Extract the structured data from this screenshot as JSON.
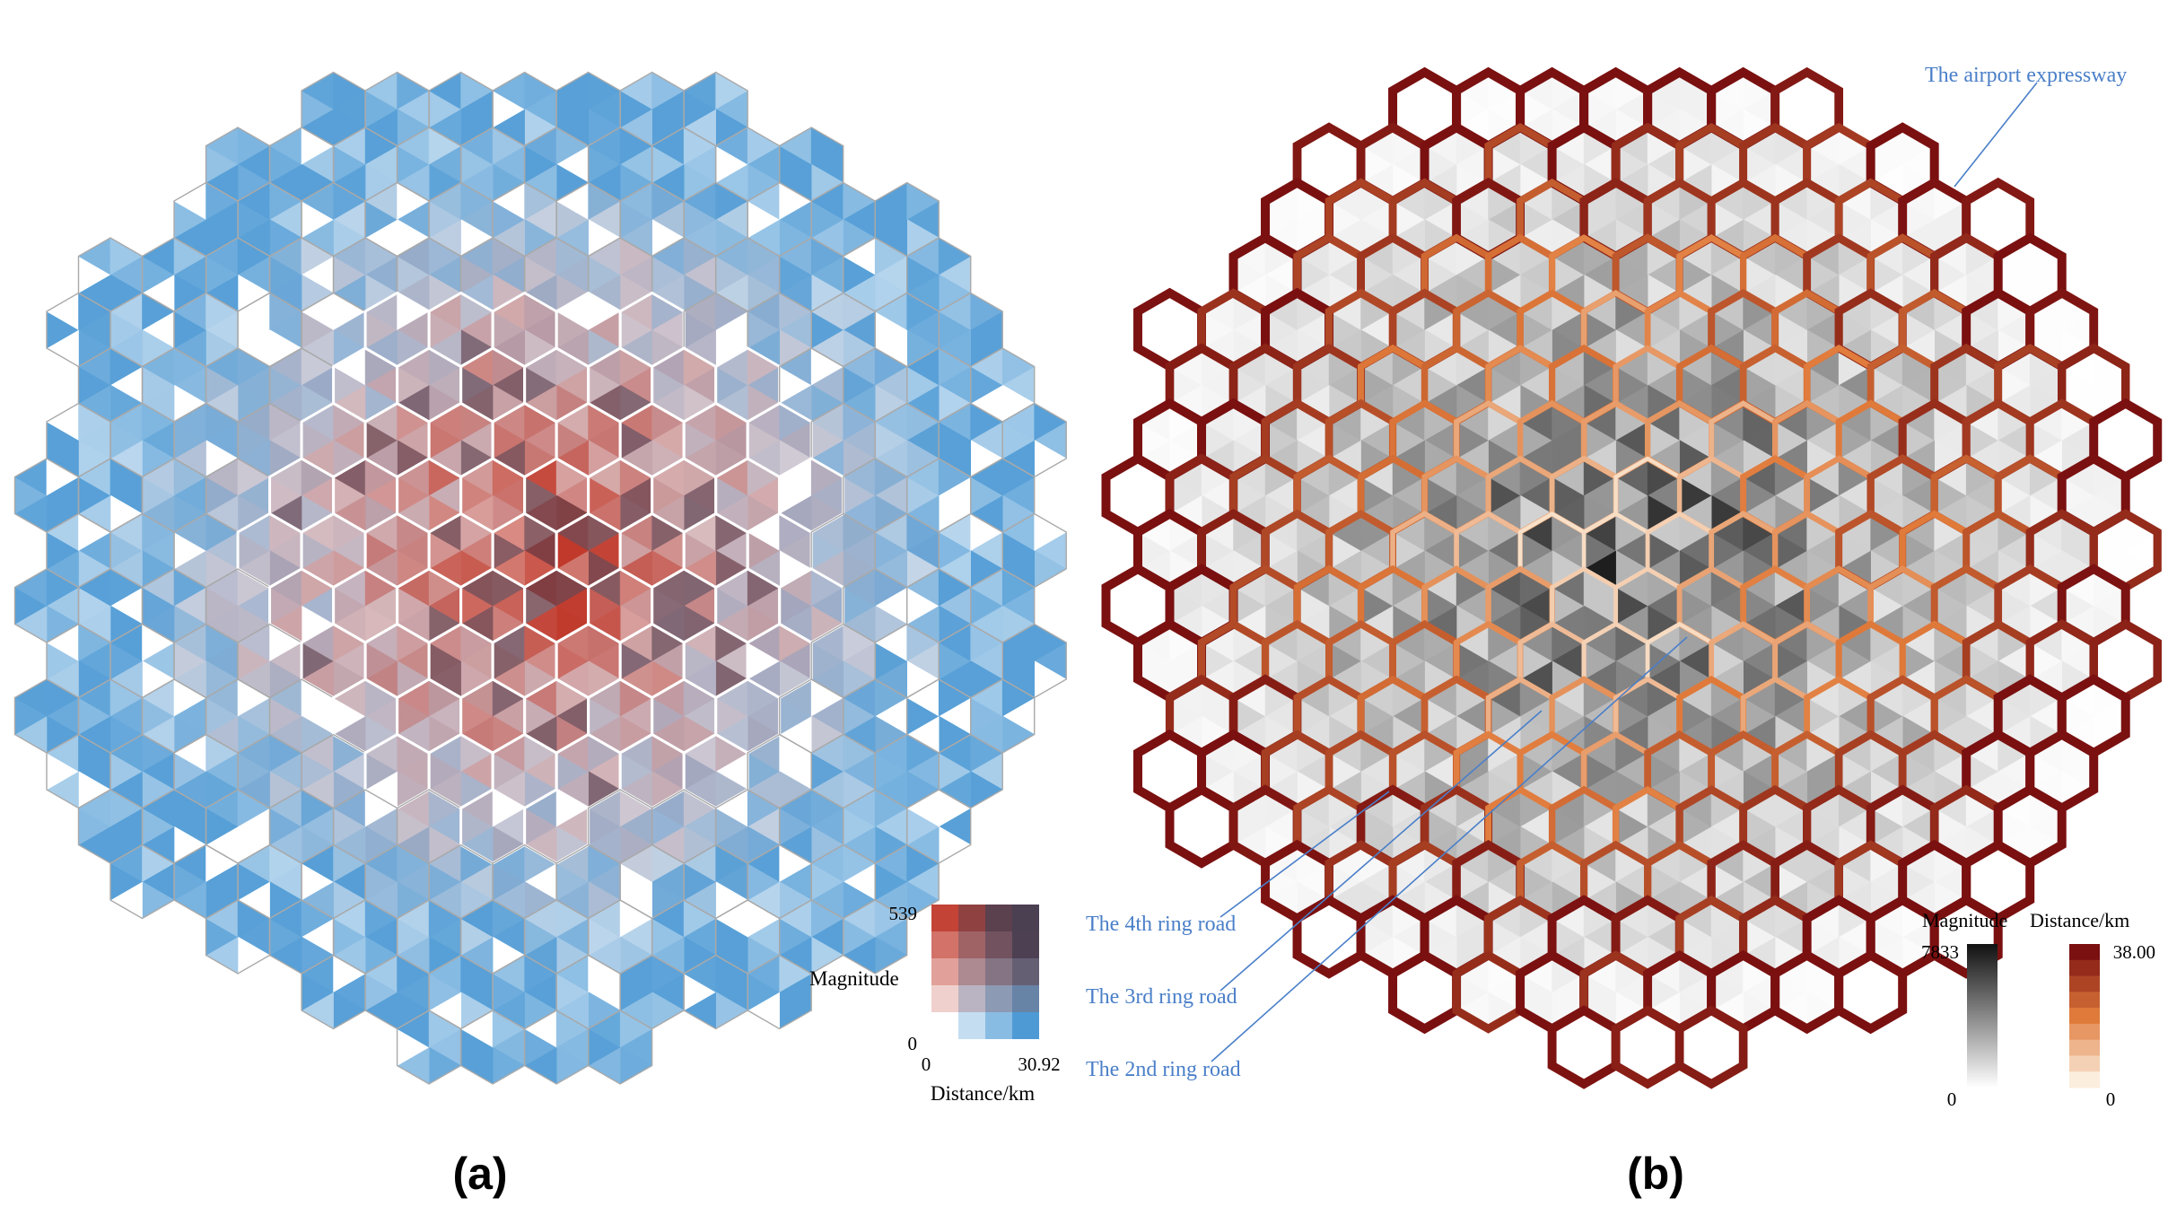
{
  "panel_a": {
    "caption": "(a)",
    "legend": {
      "magnitude_label": "Magnitude",
      "magnitude_max": "539",
      "magnitude_min": "0",
      "distance_min": "0",
      "distance_max": "30.92",
      "distance_label": "Distance/km"
    },
    "colors": {
      "high_magnitude": "#c0392b",
      "high_distance": "#3a8fd0",
      "both_high": "#4b3f52",
      "low": "#ffffff",
      "hex_outline": "#a9a9a9"
    }
  },
  "panel_b": {
    "caption": "(b)",
    "annotations": {
      "airport": "The airport expressway",
      "ring4": "The 4th ring road",
      "ring3": "The 3rd ring road",
      "ring2": "The 2nd ring road"
    },
    "legend": {
      "magnitude_label": "Magnitude",
      "magnitude_max": "7833",
      "magnitude_min": "0",
      "distance_label": "Distance/km",
      "distance_max": "38.00",
      "distance_min": "0"
    },
    "colors": {
      "magnitude_dark": "#1a1a1a",
      "distance_high": "#7a1010",
      "distance_mid": "#e07a3a",
      "distance_low": "#fbeedd",
      "annotation": "#4a7fc8"
    }
  }
}
